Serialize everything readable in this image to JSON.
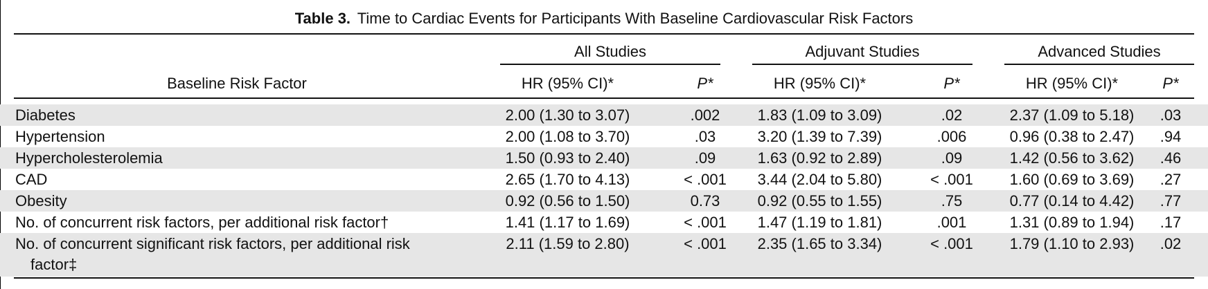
{
  "caption": {
    "label": "Table 3.",
    "title": "Time to Cardiac Events for Participants With Baseline Cardiovascular Risk Factors"
  },
  "header": {
    "row_header": "Baseline Risk Factor",
    "groups": [
      "All Studies",
      "Adjuvant Studies",
      "Advanced Studies"
    ],
    "hr_label": "HR (95% CI)*",
    "p_label": "P*"
  },
  "rows": [
    {
      "factor": "Diabetes",
      "factor_cont": "",
      "all_hr": "2.00 (1.30 to 3.07)",
      "all_p": ".002",
      "adj_hr": "1.83 (1.09 to 3.09)",
      "adj_p": ".02",
      "adv_hr": "2.37 (1.09 to 5.18)",
      "adv_p": ".03"
    },
    {
      "factor": "Hypertension",
      "factor_cont": "",
      "all_hr": "2.00 (1.08 to 3.70)",
      "all_p": ".03",
      "adj_hr": "3.20 (1.39 to 7.39)",
      "adj_p": ".006",
      "adv_hr": "0.96 (0.38 to 2.47)",
      "adv_p": ".94"
    },
    {
      "factor": "Hypercholesterolemia",
      "factor_cont": "",
      "all_hr": "1.50 (0.93 to 2.40)",
      "all_p": ".09",
      "adj_hr": "1.63 (0.92 to 2.89)",
      "adj_p": ".09",
      "adv_hr": "1.42 (0.56 to 3.62)",
      "adv_p": ".46"
    },
    {
      "factor": "CAD",
      "factor_cont": "",
      "all_hr": "2.65 (1.70 to 4.13)",
      "all_p": "< .001",
      "adj_hr": "3.44 (2.04 to 5.80)",
      "adj_p": "< .001",
      "adv_hr": "1.60 (0.69 to 3.69)",
      "adv_p": ".27"
    },
    {
      "factor": "Obesity",
      "factor_cont": "",
      "all_hr": "0.92 (0.56 to 1.50)",
      "all_p": "0.73",
      "adj_hr": "0.92 (0.55 to 1.55)",
      "adj_p": ".75",
      "adv_hr": "0.77 (0.14 to 4.42)",
      "adv_p": ".77"
    },
    {
      "factor": "No. of concurrent risk factors, per additional risk factor†",
      "factor_cont": "",
      "all_hr": "1.41 (1.17 to 1.69)",
      "all_p": "< .001",
      "adj_hr": "1.47 (1.19 to 1.81)",
      "adj_p": ".001",
      "adv_hr": "1.31 (0.89 to 1.94)",
      "adv_p": ".17"
    },
    {
      "factor": "No. of concurrent significant risk factors, per additional risk",
      "factor_cont": "factor‡",
      "all_hr": "2.11 (1.59 to 2.80)",
      "all_p": "< .001",
      "adj_hr": "2.35 (1.65 to 3.34)",
      "adj_p": "< .001",
      "adv_hr": "1.79 (1.10 to 2.93)",
      "adv_p": ".02"
    }
  ]
}
